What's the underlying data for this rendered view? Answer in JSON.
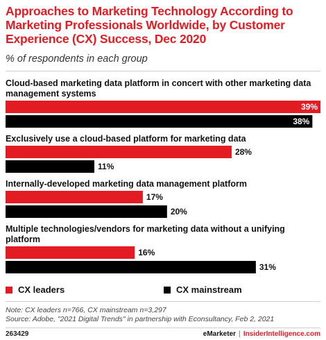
{
  "chart_data": {
    "type": "bar",
    "orientation": "horizontal",
    "title": "Approaches to Marketing Technology According to Marketing Professionals Worldwide, by Customer Experience (CX) Success, Dec 2020",
    "subtitle": "% of respondents in each group",
    "categories": [
      "Cloud-based marketing data platform in concert with other marketing data management systems",
      "Exclusively use a cloud-based platform for marketing data",
      "Internally-developed marketing data management platform",
      "Multiple technologies/vendors for marketing data without a unifying platform"
    ],
    "series": [
      {
        "name": "CX leaders",
        "color": "#e31b23",
        "values": [
          39,
          28,
          17,
          16
        ]
      },
      {
        "name": "CX mainstream",
        "color": "#000000",
        "values": [
          38,
          11,
          20,
          31
        ]
      }
    ],
    "value_suffix": "%",
    "xlim": [
      0,
      39
    ],
    "legend_position": "bottom",
    "grid": false
  },
  "footer": {
    "note": "Note: CX leaders n=766, CX mainstream n=3,297",
    "source": "Source: Adobe, \"2021 Digital Trends\" in partnership with Econsultancy, Feb 2, 2021",
    "chart_id": "263429",
    "brand": "eMarketer",
    "separator": "|",
    "brand2": "InsiderIntelligence.com"
  }
}
